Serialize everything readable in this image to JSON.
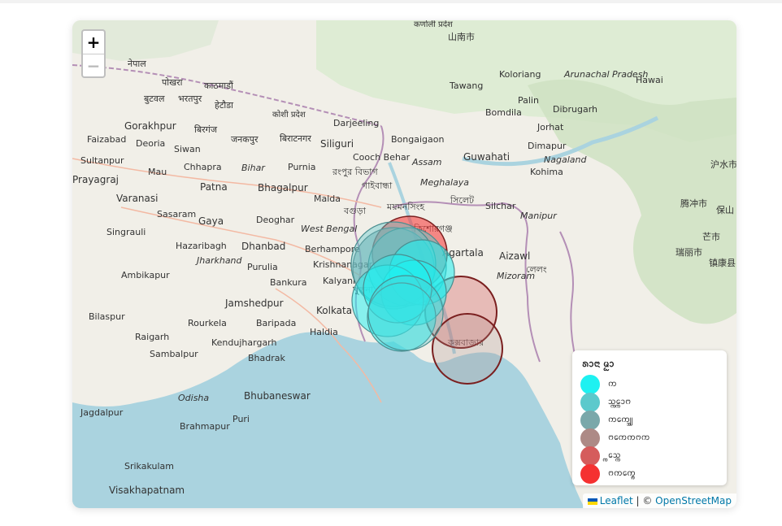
{
  "map": {
    "zoom_in_label": "+",
    "zoom_out_label": "−",
    "attribution": {
      "leaflet": "Leaflet",
      "separator": " | © ",
      "osm": "OpenStreetMap"
    },
    "place_labels": [
      "कर्णाली प्रदेश",
      "नेपाल",
      "पोखरा",
      "काठमाडौं",
      "बुटवल",
      "भरतपुर",
      "हेटौडा",
      "कोशी प्रदेश",
      "Gorakhpur",
      "Faizabad",
      "Deoria",
      "Siwan",
      "बिरगंज",
      "जनकपुर",
      "बिराटनगर",
      "Siliguri",
      "Sultanpur",
      "Prayagraj",
      "Mau",
      "Chhapra",
      "Bihar",
      "Purnia",
      "Patna",
      "Bhagalpur",
      "Varanasi",
      "Sasaram",
      "Gaya",
      "Deoghar",
      "Malda",
      "Singrauli",
      "Hazaribagh",
      "Dhanbad",
      "West Bengal",
      "Berhampore",
      "Krishnanagar",
      "Jharkhand",
      "Purulia",
      "Bankura",
      "Kalyani",
      "Ambikapur",
      "Jamshedpur",
      "Kolkata",
      "Bilaspur",
      "Rourkela",
      "Baripada",
      "Haldia",
      "Raigarh",
      "Kendujhargarh",
      "Sambalpur",
      "Bhadrak",
      "Odisha",
      "Bhubaneswar",
      "Brahmapur",
      "Puri",
      "Jagdalpur",
      "Srikakulam",
      "Visakhapatnam",
      "山南市",
      "Darjeeling",
      "Bongaigaon",
      "Cooch Behar",
      "Guwahati",
      "Assam",
      "Meghalaya",
      "রংপুর বিভাগ",
      "গাইবান্ধা",
      "বগুড়া",
      "ময়মনসিংহ",
      "কিশোরগঞ্জ",
      "সিলেট",
      "Silchar",
      "Agartala",
      "Aizawl",
      "Mizoram",
      "Manipur",
      "Nagaland",
      "Kohima",
      "Dimapur",
      "Koloriang",
      "Arunachal Pradesh",
      "Palin",
      "Bomdila",
      "Dibrugarh",
      "Jorhat",
      "Hawai",
      "Tawang",
      "沪水市",
      "腾冲市",
      "保山",
      "芒市",
      "瑞丽市",
      "镇康县",
      "লেলং",
      "কক্সবাজার",
      "খুলনা"
    ]
  },
  "legend": {
    "title": "ᩁᩣᨶᩣ ᨾᩬᩣ",
    "items": [
      {
        "label": "ᨠ",
        "color": "#1ef1f1"
      },
      {
        "label": "ᩈ᩠ᨠᩮ᩠ᨠᩣᨻ",
        "color": "#5cc9cc"
      },
      {
        "label": "ᨠᨠᩮ᩠ᩈ᩠ᩈ",
        "color": "#7aa8aa"
      },
      {
        "label": "ᨻᨠᩮᨠᨻᨠ",
        "color": "#ad8a86"
      },
      {
        "label": "᩠ᨠᩮᩈ᩠ᨠ",
        "color": "#d55c5c"
      },
      {
        "label": "ᨻᨠᨠᩮ᩠ᨻ᩠ᨻ",
        "color": "#f53131"
      }
    ]
  }
}
